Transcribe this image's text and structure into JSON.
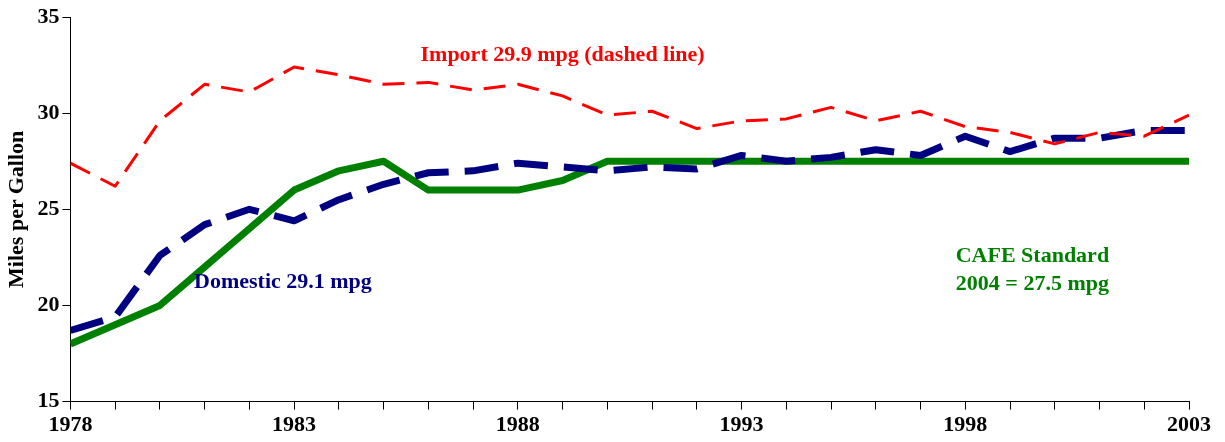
{
  "chart_data": {
    "type": "line",
    "ylabel": "Miles per Gallon",
    "x": [
      1978,
      1979,
      1980,
      1981,
      1982,
      1983,
      1984,
      1985,
      1986,
      1987,
      1988,
      1989,
      1990,
      1991,
      1992,
      1993,
      1994,
      1995,
      1996,
      1997,
      1998,
      1999,
      2000,
      2001,
      2002,
      2003
    ],
    "series": [
      {
        "name": "Import 29.9 mpg (dashed line)",
        "color": "#ff0000",
        "line_style": "dashed",
        "values": [
          27.4,
          26.2,
          29.6,
          31.5,
          31.1,
          32.4,
          32.0,
          31.5,
          31.6,
          31.2,
          31.5,
          30.9,
          29.9,
          30.1,
          29.2,
          29.6,
          29.7,
          30.3,
          29.6,
          30.1,
          29.3,
          29.0,
          28.4,
          29.0,
          28.8,
          29.9
        ]
      },
      {
        "name": "Domestic 29.1 mpg",
        "color": "#000080",
        "line_style": "dashed",
        "values": [
          18.7,
          19.4,
          22.6,
          24.2,
          25.0,
          24.4,
          25.5,
          26.3,
          26.9,
          27.0,
          27.4,
          27.2,
          27.0,
          27.2,
          27.1,
          27.8,
          27.5,
          27.7,
          28.1,
          27.8,
          28.8,
          28.0,
          28.7,
          28.7,
          29.1,
          29.1
        ]
      },
      {
        "name": "CAFE Standard\n2004 = 27.5 mpg",
        "color": "#008000",
        "line_style": "solid",
        "values": [
          18.0,
          19.0,
          20.0,
          22.0,
          24.0,
          26.0,
          27.0,
          27.5,
          26.0,
          26.0,
          26.0,
          26.5,
          27.5,
          27.5,
          27.5,
          27.5,
          27.5,
          27.5,
          27.5,
          27.5,
          27.5,
          27.5,
          27.5,
          27.5,
          27.5,
          27.5
        ]
      }
    ],
    "xlim": [
      1978,
      2003
    ],
    "xticks": [
      1978,
      {
        "value": 1979,
        "label": null
      },
      {
        "value": 1980,
        "label": null
      },
      {
        "value": 1981,
        "label": null
      },
      {
        "value": 1982,
        "label": null
      },
      1983,
      {
        "value": 1984,
        "label": null
      },
      {
        "value": 1985,
        "label": null
      },
      {
        "value": 1986,
        "label": null
      },
      {
        "value": 1987,
        "label": null
      },
      1988,
      {
        "value": 1989,
        "label": null
      },
      {
        "value": 1990,
        "label": null
      },
      {
        "value": 1991,
        "label": null
      },
      {
        "value": 1992,
        "label": null
      },
      1993,
      {
        "value": 1994,
        "label": null
      },
      {
        "value": 1995,
        "label": null
      },
      {
        "value": 1996,
        "label": null
      },
      {
        "value": 1997,
        "label": null
      },
      1998,
      {
        "value": 1999,
        "label": null
      },
      {
        "value": 2000,
        "label": null
      },
      {
        "value": 2001,
        "label": null
      },
      {
        "value": 2002,
        "label": null
      },
      2003
    ],
    "ylim": [
      15,
      35
    ],
    "yticks": [
      15,
      20,
      25,
      30,
      35
    ],
    "grid": false,
    "legend": false,
    "marker": "none"
  }
}
